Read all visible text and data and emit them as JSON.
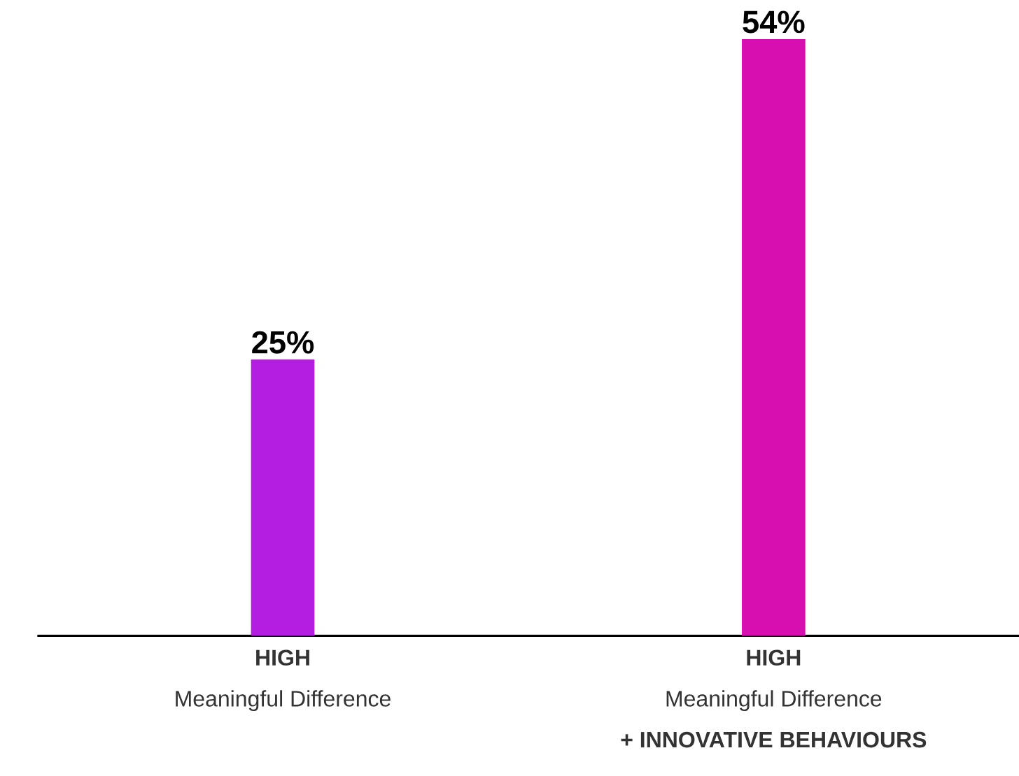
{
  "chart_data": {
    "type": "bar",
    "categories": [
      "**HIGH**\nMeaningful Difference",
      "**HIGH**\nMeaningful Difference\n**+ INNOVATIVE BEHAVIOURS**"
    ],
    "values": [
      25,
      54
    ],
    "colors": [
      "#b41ee0",
      "#d80fb0"
    ],
    "value_labels": [
      "25%",
      "54%"
    ]
  }
}
